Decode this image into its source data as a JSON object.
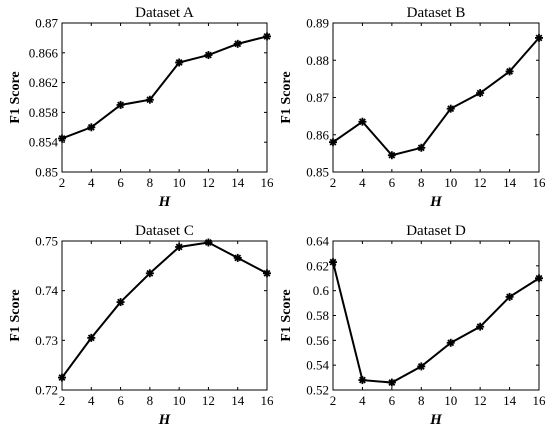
{
  "chart_data": [
    {
      "type": "line",
      "title": "Dataset A",
      "xlabel": "H",
      "ylabel": "F1 Score",
      "x": [
        2,
        4,
        6,
        8,
        10,
        12,
        14,
        16
      ],
      "xticks": [
        2,
        4,
        6,
        8,
        10,
        12,
        14,
        16
      ],
      "xlim": [
        2,
        16
      ],
      "ylim": [
        0.85,
        0.87
      ],
      "yticks": [
        "0.85",
        "0.854",
        "0.858",
        "0.862",
        "0.866",
        "0.87"
      ],
      "series": [
        {
          "values": [
            0.8545,
            0.856,
            0.859,
            0.8597,
            0.8647,
            0.8657,
            0.8672,
            0.8682
          ],
          "color": "#000000",
          "marker": "asterisk"
        }
      ],
      "grid": false,
      "legend": false
    },
    {
      "type": "line",
      "title": "Dataset B",
      "xlabel": "H",
      "ylabel": "F1 Score",
      "x": [
        2,
        4,
        6,
        8,
        10,
        12,
        14,
        16
      ],
      "xticks": [
        2,
        4,
        6,
        8,
        10,
        12,
        14,
        16
      ],
      "xlim": [
        2,
        16
      ],
      "ylim": [
        0.85,
        0.89
      ],
      "yticks": [
        "0.85",
        "0.86",
        "0.87",
        "0.88",
        "0.89"
      ],
      "series": [
        {
          "values": [
            0.858,
            0.8635,
            0.8545,
            0.8565,
            0.867,
            0.8712,
            0.877,
            0.886
          ],
          "color": "#000000",
          "marker": "asterisk"
        }
      ],
      "grid": false,
      "legend": false
    },
    {
      "type": "line",
      "title": "Dataset C",
      "xlabel": "H",
      "ylabel": "F1 Score",
      "x": [
        2,
        4,
        6,
        8,
        10,
        12,
        14,
        16
      ],
      "xticks": [
        2,
        4,
        6,
        8,
        10,
        12,
        14,
        16
      ],
      "xlim": [
        2,
        16
      ],
      "ylim": [
        0.72,
        0.75
      ],
      "yticks": [
        "0.72",
        "0.73",
        "0.74",
        "0.75"
      ],
      "series": [
        {
          "values": [
            0.7225,
            0.7305,
            0.7377,
            0.7435,
            0.7488,
            0.7497,
            0.7466,
            0.7435
          ],
          "color": "#000000",
          "marker": "asterisk"
        }
      ],
      "grid": false,
      "legend": false
    },
    {
      "type": "line",
      "title": "Dataset D",
      "xlabel": "H",
      "ylabel": "F1 Score",
      "x": [
        2,
        4,
        6,
        8,
        10,
        12,
        14,
        16
      ],
      "xticks": [
        2,
        4,
        6,
        8,
        10,
        12,
        14,
        16
      ],
      "xlim": [
        2,
        16
      ],
      "ylim": [
        0.52,
        0.64
      ],
      "yticks": [
        "0.52",
        "0.54",
        "0.56",
        "0.58",
        "0.6",
        "0.62",
        "0.64"
      ],
      "series": [
        {
          "values": [
            0.623,
            0.528,
            0.526,
            0.539,
            0.558,
            0.571,
            0.595,
            0.61
          ],
          "color": "#000000",
          "marker": "asterisk"
        }
      ],
      "grid": false,
      "legend": false
    }
  ]
}
